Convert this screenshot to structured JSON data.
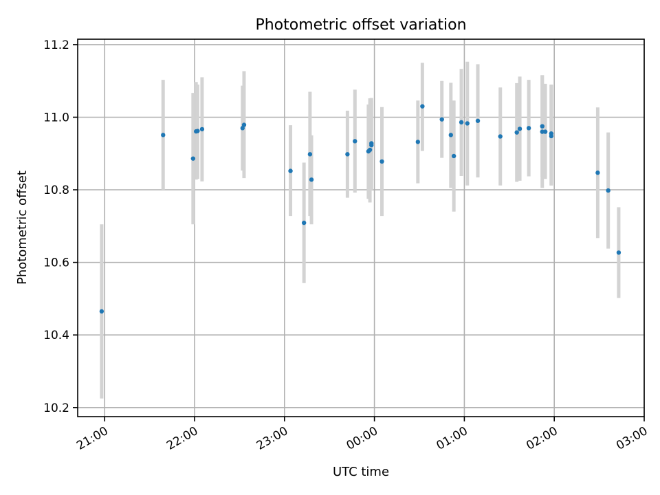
{
  "chart_data": {
    "type": "scatter",
    "title": "Photometric offset variation",
    "xlabel": "UTC time",
    "ylabel": "Photometric offset",
    "x_unit": "UTC time (hours, clock-time labels)",
    "xlim": [
      "20:42",
      "03:00"
    ],
    "ylim": [
      10.175,
      11.215
    ],
    "x_ticks": [
      "21:00",
      "22:00",
      "23:00",
      "00:00",
      "01:00",
      "02:00",
      "03:00"
    ],
    "y_ticks": [
      "10.2",
      "10.4",
      "10.6",
      "10.8",
      "11.0",
      "11.2"
    ],
    "grid": true,
    "colors": {
      "marker": "#1f77b4",
      "errorbar": "#d3d3d3",
      "grid": "#b0b0b0"
    },
    "series": [
      {
        "points": [
          {
            "t": "20:58",
            "y": 10.465,
            "ylo": 10.225,
            "yhi": 10.705
          },
          {
            "t": "21:39",
            "y": 10.951,
            "ylo": 10.8,
            "yhi": 11.103
          },
          {
            "t": "21:59",
            "y": 10.886,
            "ylo": 10.705,
            "yhi": 11.067
          },
          {
            "t": "22:01",
            "y": 10.961,
            "ylo": 10.828,
            "yhi": 11.097
          },
          {
            "t": "22:02",
            "y": 10.962,
            "ylo": 10.83,
            "yhi": 11.09
          },
          {
            "t": "22:05",
            "y": 10.967,
            "ylo": 10.823,
            "yhi": 11.11
          },
          {
            "t": "22:32",
            "y": 10.97,
            "ylo": 10.853,
            "yhi": 11.087
          },
          {
            "t": "22:33",
            "y": 10.979,
            "ylo": 10.832,
            "yhi": 11.127
          },
          {
            "t": "23:04",
            "y": 10.852,
            "ylo": 10.728,
            "yhi": 10.978
          },
          {
            "t": "23:13",
            "y": 10.709,
            "ylo": 10.543,
            "yhi": 10.875
          },
          {
            "t": "23:17",
            "y": 10.898,
            "ylo": 10.728,
            "yhi": 11.07
          },
          {
            "t": "23:18",
            "y": 10.828,
            "ylo": 10.705,
            "yhi": 10.95
          },
          {
            "t": "23:42",
            "y": 10.898,
            "ylo": 10.778,
            "yhi": 11.018
          },
          {
            "t": "23:47",
            "y": 10.934,
            "ylo": 10.792,
            "yhi": 11.076
          },
          {
            "t": "23:56",
            "y": 10.906,
            "ylo": 10.775,
            "yhi": 11.035
          },
          {
            "t": "23:57",
            "y": 10.91,
            "ylo": 10.765,
            "yhi": 11.052
          },
          {
            "t": "23:58",
            "y": 10.928,
            "ylo": 10.803,
            "yhi": 11.053
          },
          {
            "t": "23:58",
            "y": 10.923,
            "ylo": 10.8,
            "yhi": 11.045
          },
          {
            "t": "00:05",
            "y": 10.878,
            "ylo": 10.728,
            "yhi": 11.028
          },
          {
            "t": "00:29",
            "y": 10.932,
            "ylo": 10.818,
            "yhi": 11.046
          },
          {
            "t": "00:32",
            "y": 11.03,
            "ylo": 10.907,
            "yhi": 11.15
          },
          {
            "t": "00:45",
            "y": 10.994,
            "ylo": 10.888,
            "yhi": 11.1
          },
          {
            "t": "00:51",
            "y": 10.951,
            "ylo": 10.805,
            "yhi": 11.095
          },
          {
            "t": "00:53",
            "y": 10.893,
            "ylo": 10.74,
            "yhi": 11.046
          },
          {
            "t": "00:58",
            "y": 10.986,
            "ylo": 10.838,
            "yhi": 11.133
          },
          {
            "t": "01:02",
            "y": 10.983,
            "ylo": 10.812,
            "yhi": 11.153
          },
          {
            "t": "01:09",
            "y": 10.99,
            "ylo": 10.834,
            "yhi": 11.146
          },
          {
            "t": "01:24",
            "y": 10.947,
            "ylo": 10.812,
            "yhi": 11.082
          },
          {
            "t": "01:35",
            "y": 10.958,
            "ylo": 10.822,
            "yhi": 11.094
          },
          {
            "t": "01:37",
            "y": 10.968,
            "ylo": 10.825,
            "yhi": 11.112
          },
          {
            "t": "01:43",
            "y": 10.97,
            "ylo": 10.837,
            "yhi": 11.103
          },
          {
            "t": "01:52",
            "y": 10.96,
            "ylo": 10.805,
            "yhi": 11.116
          },
          {
            "t": "01:52",
            "y": 10.975,
            "ylo": 10.835,
            "yhi": 11.115
          },
          {
            "t": "01:54",
            "y": 10.96,
            "ylo": 10.83,
            "yhi": 11.092
          },
          {
            "t": "01:58",
            "y": 10.955,
            "ylo": 10.812,
            "yhi": 11.09
          },
          {
            "t": "01:58",
            "y": 10.948,
            "ylo": 10.812,
            "yhi": 11.088
          },
          {
            "t": "02:29",
            "y": 10.847,
            "ylo": 10.667,
            "yhi": 11.027
          },
          {
            "t": "02:36",
            "y": 10.798,
            "ylo": 10.638,
            "yhi": 10.958
          },
          {
            "t": "02:43",
            "y": 10.627,
            "ylo": 10.502,
            "yhi": 10.752
          }
        ]
      }
    ]
  }
}
